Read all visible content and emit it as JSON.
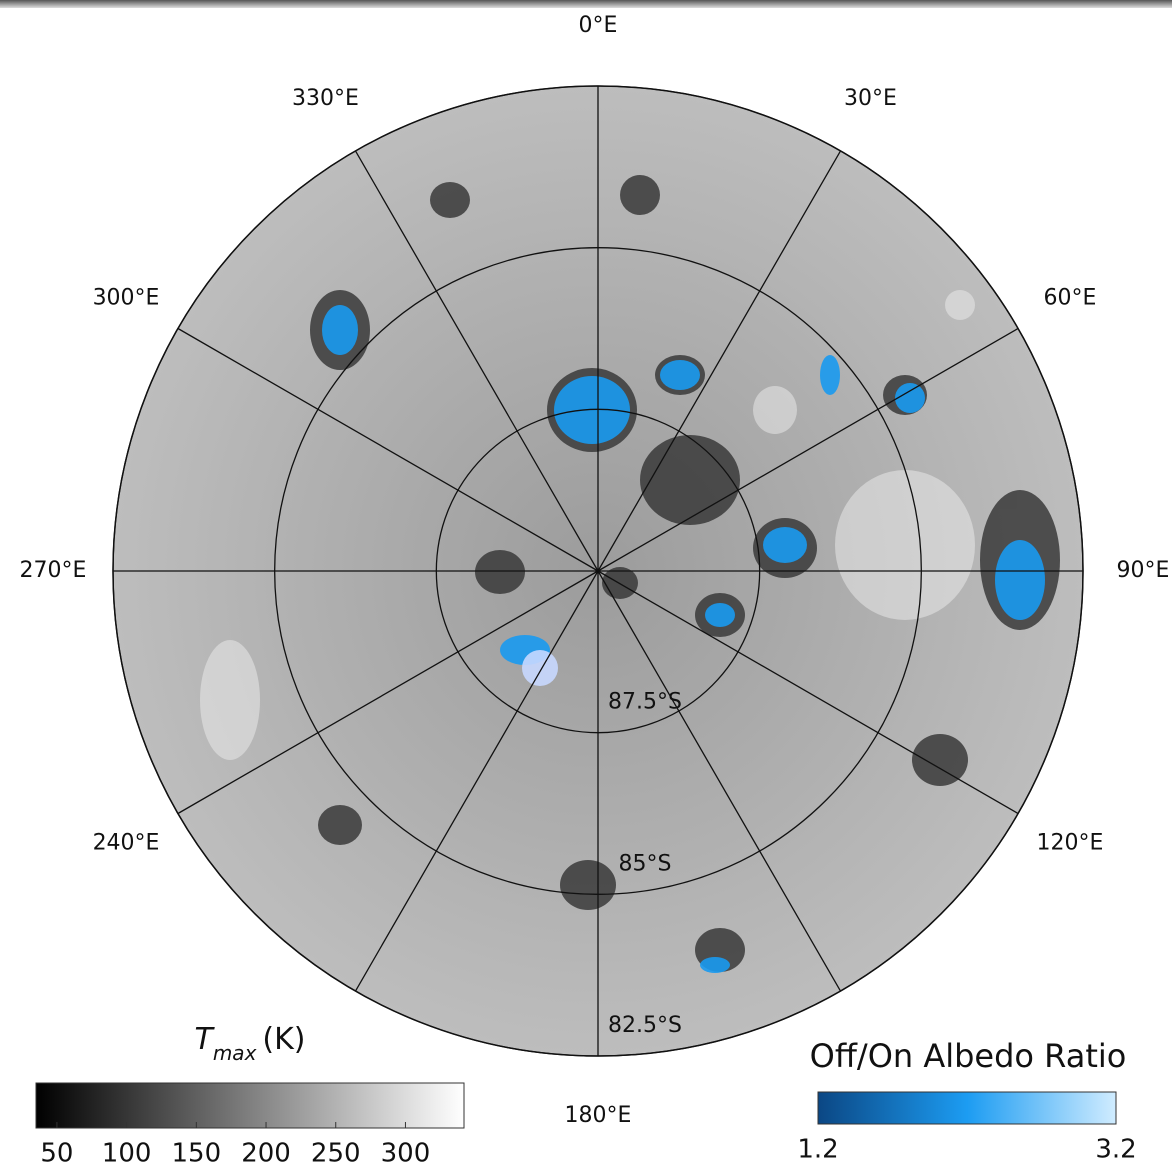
{
  "map": {
    "lon_labels": [
      {
        "value": 0,
        "label": "0°E"
      },
      {
        "value": 30,
        "label": "30°E"
      },
      {
        "value": 60,
        "label": "60°E"
      },
      {
        "value": 90,
        "label": "90°E"
      },
      {
        "value": 120,
        "label": "120°E"
      },
      {
        "value": 180,
        "label": "180°E"
      },
      {
        "value": 240,
        "label": "240°E"
      },
      {
        "value": 270,
        "label": "270°E"
      },
      {
        "value": 300,
        "label": "300°E"
      },
      {
        "value": 330,
        "label": "330°E"
      }
    ],
    "lat_limit": -82.5,
    "lat_circles": [
      {
        "value": -87.5,
        "label": "87.5°S"
      },
      {
        "value": -85,
        "label": "85°S"
      },
      {
        "value": -82.5,
        "label": "82.5°S"
      }
    ]
  },
  "colorbars": [
    {
      "title": "T",
      "title_sub": "max",
      "title_unit": "(K)",
      "lim": [
        35,
        342
      ],
      "ticks": [
        50,
        100,
        150,
        200,
        250,
        300
      ]
    },
    {
      "title": "Off/On Albedo Ratio",
      "lim": [
        1.2,
        3.2
      ],
      "ticks": [
        1.2,
        3.2
      ]
    }
  ]
}
